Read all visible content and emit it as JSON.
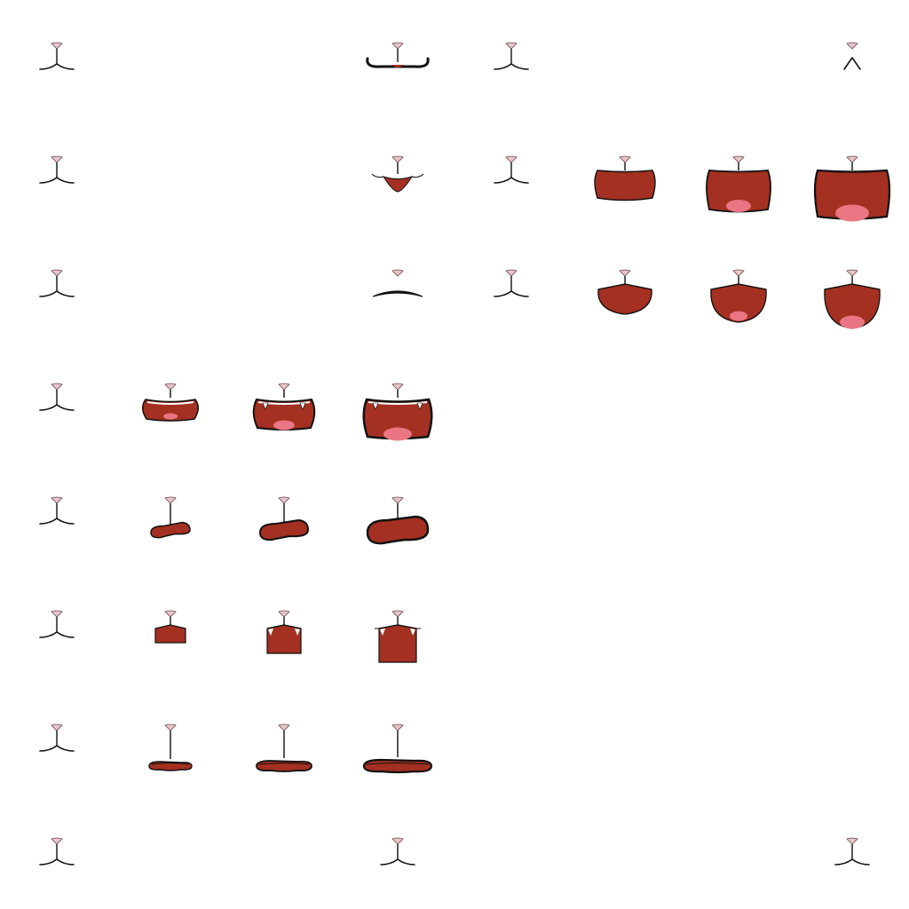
{
  "sheet": {
    "colors": {
      "mouth": "#a33021",
      "tongue": "#ea7583",
      "nose": "#e8c4cb",
      "line": "#111111"
    },
    "sprites": [
      {
        "row": 0,
        "col": 0,
        "shape": "closed"
      },
      {
        "row": 0,
        "col": 3,
        "shape": "mustache"
      },
      {
        "row": 0,
        "col": 4,
        "shape": "closed"
      },
      {
        "row": 0,
        "col": 7,
        "shape": "caret"
      },
      {
        "row": 1,
        "col": 0,
        "shape": "closed"
      },
      {
        "row": 1,
        "col": 3,
        "shape": "smirk"
      },
      {
        "row": 1,
        "col": 4,
        "shape": "closed"
      },
      {
        "row": 1,
        "col": 5,
        "shape": "open-box",
        "level": 1
      },
      {
        "row": 1,
        "col": 6,
        "shape": "open-box",
        "level": 2
      },
      {
        "row": 1,
        "col": 7,
        "shape": "open-box",
        "level": 3
      },
      {
        "row": 2,
        "col": 0,
        "shape": "closed"
      },
      {
        "row": 2,
        "col": 3,
        "shape": "flat"
      },
      {
        "row": 2,
        "col": 4,
        "shape": "closed"
      },
      {
        "row": 2,
        "col": 5,
        "shape": "open-bowl",
        "level": 1
      },
      {
        "row": 2,
        "col": 6,
        "shape": "open-bowl",
        "level": 2
      },
      {
        "row": 2,
        "col": 7,
        "shape": "open-bowl",
        "level": 3
      },
      {
        "row": 3,
        "col": 0,
        "shape": "closed"
      },
      {
        "row": 3,
        "col": 1,
        "shape": "open-fang",
        "level": 1
      },
      {
        "row": 3,
        "col": 2,
        "shape": "open-fang",
        "level": 2
      },
      {
        "row": 3,
        "col": 3,
        "shape": "open-fang",
        "level": 3
      },
      {
        "row": 4,
        "col": 0,
        "shape": "closed"
      },
      {
        "row": 4,
        "col": 1,
        "shape": "oval-tilt",
        "level": 1
      },
      {
        "row": 4,
        "col": 2,
        "shape": "oval-tilt",
        "level": 2
      },
      {
        "row": 4,
        "col": 3,
        "shape": "oval-tilt",
        "level": 3
      },
      {
        "row": 5,
        "col": 0,
        "shape": "closed"
      },
      {
        "row": 5,
        "col": 1,
        "shape": "square",
        "level": 1
      },
      {
        "row": 5,
        "col": 2,
        "shape": "square",
        "level": 2
      },
      {
        "row": 5,
        "col": 3,
        "shape": "square",
        "level": 3
      },
      {
        "row": 6,
        "col": 0,
        "shape": "closed"
      },
      {
        "row": 6,
        "col": 1,
        "shape": "thin",
        "level": 1
      },
      {
        "row": 6,
        "col": 2,
        "shape": "thin",
        "level": 2
      },
      {
        "row": 6,
        "col": 3,
        "shape": "thin",
        "level": 3
      },
      {
        "row": 7,
        "col": 0,
        "shape": "closed"
      },
      {
        "row": 7,
        "col": 3,
        "shape": "closed"
      },
      {
        "row": 7,
        "col": 7,
        "shape": "closed"
      }
    ]
  }
}
